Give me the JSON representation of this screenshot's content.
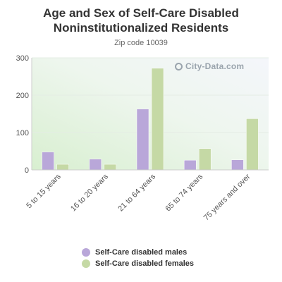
{
  "title_line1": "Age and Sex of Self-Care Disabled",
  "title_line2": "Noninstitutionalized Residents",
  "subtitle": "Zip code 10039",
  "watermark": "City-Data.com",
  "chart_data": {
    "type": "bar",
    "title": "Age and Sex of Self-Care Disabled Noninstitutionalized Residents",
    "subtitle": "Zip code 10039",
    "categories": [
      "5 to 15 years",
      "16 to 20 years",
      "21 to 64 years",
      "65 to 74 years",
      "75 years and over"
    ],
    "series": [
      {
        "name": "Self-Care disabled males",
        "color": "#b9a7d9",
        "values": [
          48,
          29,
          163,
          26,
          27
        ]
      },
      {
        "name": "Self-Care disabled females",
        "color": "#c5d9a5",
        "values": [
          15,
          15,
          272,
          57,
          137
        ]
      }
    ],
    "ylim": [
      0,
      300
    ],
    "yticks": [
      0,
      100,
      200,
      300
    ],
    "grid": true,
    "legend_position": "bottom"
  }
}
